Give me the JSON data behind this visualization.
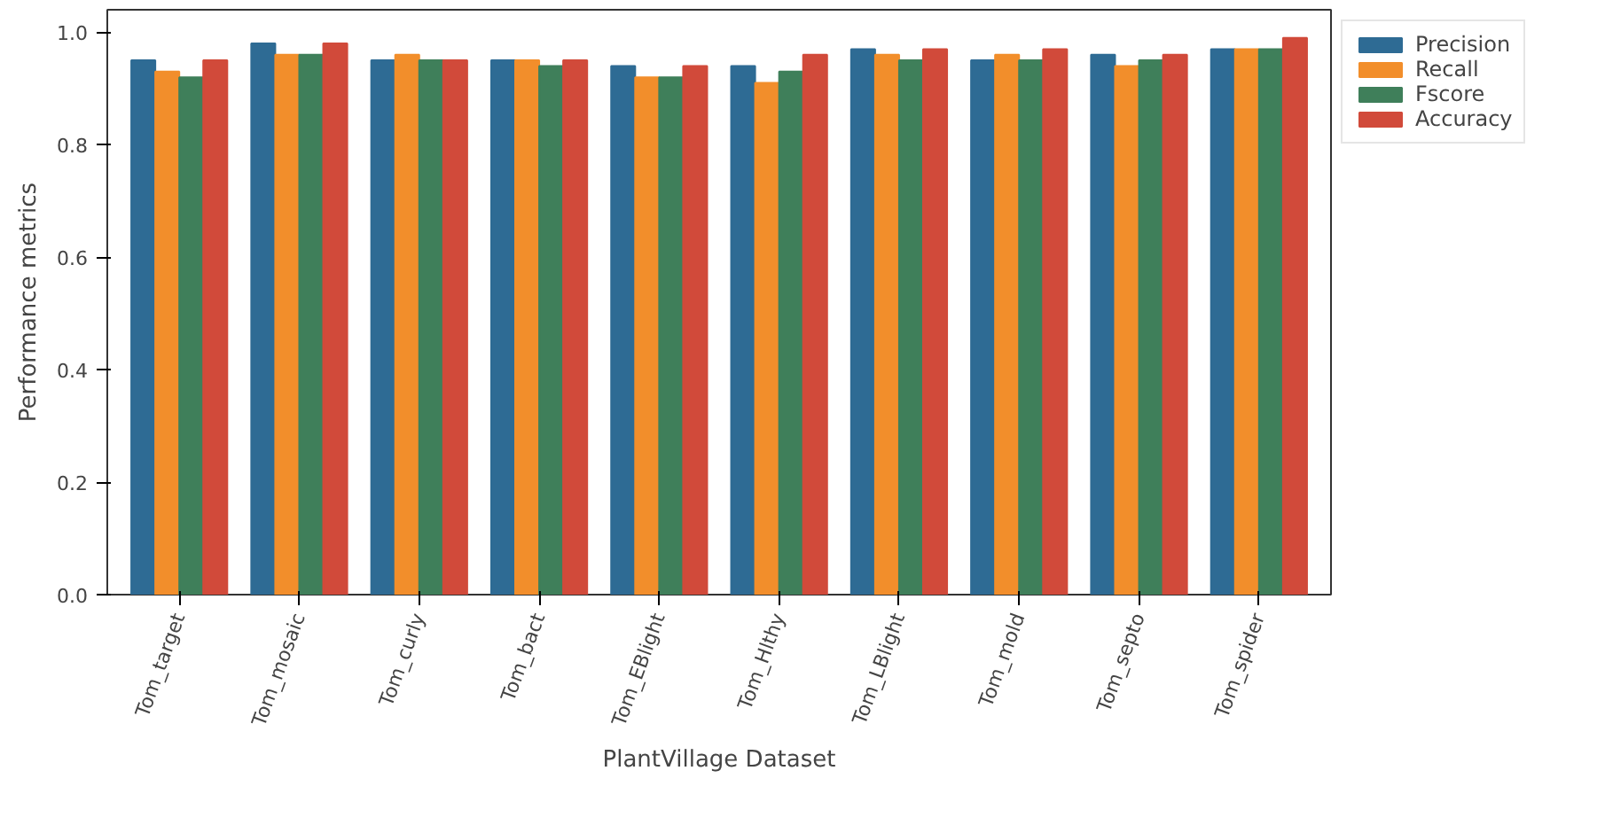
{
  "chart_data": {
    "type": "bar",
    "xlabel": "PlantVillage Dataset",
    "ylabel": "Performance metrics",
    "categories": [
      "Tom_target",
      "Tom_mosaic",
      "Tom_curly",
      "Tom_bact",
      "Tom_EBlight",
      "Tom_Hlthy",
      "Tom_LBlight",
      "Tom_mold",
      "Tom_septo",
      "Tom_spider"
    ],
    "series": [
      {
        "name": "Precision",
        "color": "#2e6b94",
        "values": [
          0.95,
          0.98,
          0.95,
          0.95,
          0.94,
          0.94,
          0.97,
          0.95,
          0.96,
          0.97
        ]
      },
      {
        "name": "Recall",
        "color": "#f28e2b",
        "values": [
          0.93,
          0.96,
          0.96,
          0.95,
          0.92,
          0.91,
          0.96,
          0.96,
          0.94,
          0.97
        ]
      },
      {
        "name": "Fscore",
        "color": "#3f7f5a",
        "values": [
          0.92,
          0.96,
          0.95,
          0.94,
          0.92,
          0.93,
          0.95,
          0.95,
          0.95,
          0.97
        ]
      },
      {
        "name": "Accuracy",
        "color": "#d14a3a",
        "values": [
          0.95,
          0.98,
          0.95,
          0.95,
          0.94,
          0.96,
          0.97,
          0.97,
          0.96,
          0.99
        ]
      }
    ],
    "ylim": [
      0,
      1.04
    ],
    "yticks": [
      {
        "value": 0,
        "label": "0.0"
      },
      0.2,
      0.4,
      0.6,
      0.8,
      {
        "value": 1,
        "label": "1.0"
      }
    ],
    "grid": false,
    "legend": "top right"
  }
}
